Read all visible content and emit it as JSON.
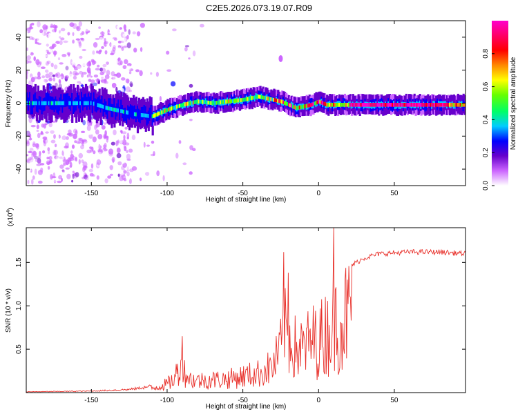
{
  "title": "C2E5.2026.073.19.07.R09",
  "chart_data": [
    {
      "type": "heatmap",
      "name": "spectrogram",
      "xlabel": "Height of straight line (km)",
      "ylabel": "Frequency (Hz)",
      "xlim": [
        -193,
        97
      ],
      "ylim": [
        -50,
        50
      ],
      "xticks": [
        -150,
        -100,
        -50,
        0,
        50
      ],
      "yticks": [
        -40,
        -20,
        0,
        20,
        40
      ],
      "colorbar": {
        "label": "Normalized spectral amplitude",
        "range": [
          0,
          1
        ],
        "ticks": [
          "0.0",
          "0.2",
          "0.4",
          "0.6",
          "0.8"
        ],
        "colors": [
          "#ffffff",
          "#cc66ff",
          "#6600cc",
          "#0000ff",
          "#00ccff",
          "#00ff66",
          "#66ff00",
          "#ffff00",
          "#ff8800",
          "#ff0000",
          "#ff0066",
          "#ff00cc"
        ]
      },
      "ridge": {
        "x": [
          -193,
          -170,
          -150,
          -140,
          -130,
          -120,
          -110,
          -100,
          -90,
          -80,
          -70,
          -60,
          -50,
          -40,
          -35,
          -30,
          -25,
          -20,
          -15,
          -10,
          -5,
          0,
          5,
          10,
          20,
          40,
          60,
          80,
          97
        ],
        "y": [
          0,
          0,
          0,
          -3,
          -5,
          -7,
          -8,
          -4,
          -1,
          1,
          0,
          1,
          2,
          4,
          3,
          2,
          1,
          -1,
          -3,
          -2,
          -1,
          1,
          -1,
          -1,
          -1,
          -1,
          -1,
          -1,
          -1
        ]
      }
    },
    {
      "type": "line",
      "name": "snr",
      "xlabel": "Height of straight line (km)",
      "ylabel": "SNR (10 * v/v)",
      "multiplier": "(x10",
      "exponent": "4",
      "multiplier_close": ")",
      "xlim": [
        -193,
        97
      ],
      "ylim": [
        0,
        1.9
      ],
      "xticks": [
        -150,
        -100,
        -50,
        0,
        50
      ],
      "yticks": [
        "0.5",
        "1.0",
        "1.5"
      ],
      "color": "#e8302a",
      "envelope": {
        "x": [
          -193,
          -150,
          -125,
          -110,
          -100,
          -95,
          -92,
          -85,
          -80,
          -60,
          -40,
          -30,
          -25,
          -22,
          -20,
          -15,
          -10,
          -5,
          0,
          5,
          10,
          15,
          20,
          25,
          30,
          40,
          60,
          80,
          97
        ],
        "y": [
          0.01,
          0.02,
          0.04,
          0.08,
          0.16,
          0.25,
          0.5,
          0.25,
          0.22,
          0.25,
          0.35,
          0.48,
          0.8,
          1.1,
          1.05,
          0.8,
          0.8,
          0.95,
          0.95,
          1.1,
          1.3,
          1.35,
          1.45,
          1.5,
          1.55,
          1.6,
          1.62,
          1.62,
          1.6
        ]
      },
      "spikes": [
        {
          "x": -90,
          "y": 0.65
        },
        {
          "x": -23,
          "y": 1.62
        },
        {
          "x": -20,
          "y": 1.38
        },
        {
          "x": 10,
          "y": 1.9
        }
      ]
    }
  ]
}
